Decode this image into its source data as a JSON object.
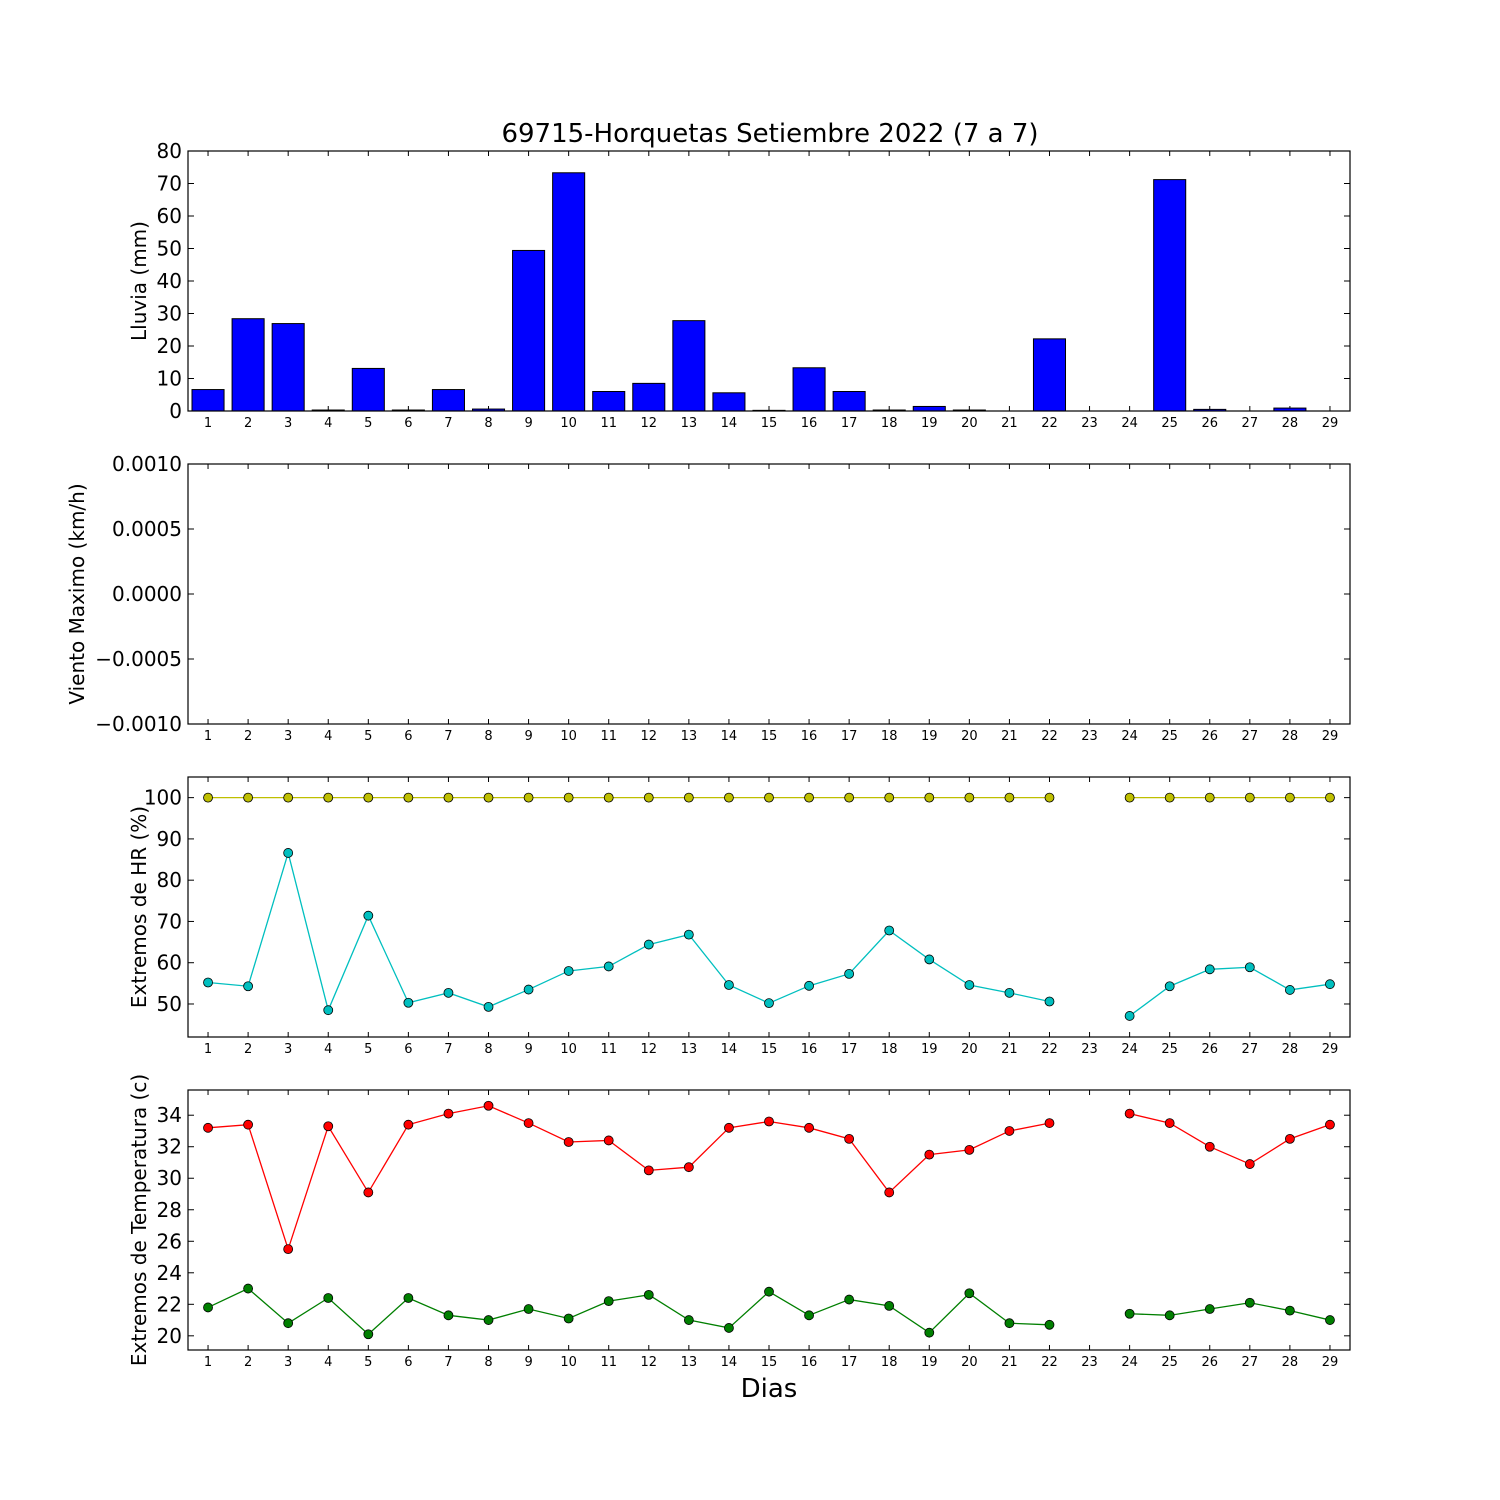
{
  "title": "69715-Horquetas Setiembre 2022  (7 a 7)",
  "xlabel": "Dias",
  "chart_data": [
    {
      "type": "bar",
      "ylabel": "Lluvia (mm)",
      "ylim": [
        0,
        80
      ],
      "yticks": [
        "0",
        "10",
        "20",
        "30",
        "40",
        "50",
        "60",
        "70",
        "80"
      ],
      "yticks_values": [
        0,
        10,
        20,
        30,
        40,
        50,
        60,
        70,
        80
      ],
      "categories": [
        "1",
        "2",
        "3",
        "4",
        "5",
        "6",
        "7",
        "8",
        "9",
        "10",
        "11",
        "12",
        "13",
        "14",
        "15",
        "16",
        "17",
        "18",
        "19",
        "20",
        "21",
        "22",
        "23",
        "24",
        "25",
        "26",
        "27",
        "28",
        "29"
      ],
      "x": [
        1,
        2,
        3,
        4,
        5,
        6,
        7,
        8,
        9,
        10,
        11,
        12,
        13,
        14,
        15,
        16,
        17,
        18,
        19,
        20,
        21,
        22,
        23,
        24,
        25,
        26,
        27,
        28,
        29
      ],
      "values": [
        6.6,
        28.4,
        26.9,
        0.3,
        13.1,
        0.3,
        6.6,
        0.6,
        49.4,
        73.3,
        6.0,
        8.5,
        27.8,
        5.6,
        0.2,
        13.3,
        6.0,
        0.3,
        1.4,
        0.3,
        0,
        22.2,
        0,
        0,
        71.2,
        0.5,
        0,
        0.9,
        0
      ],
      "color": "#0000ff"
    },
    {
      "type": "line",
      "ylabel": "Viento Maximo (km/h)",
      "ylim": [
        -0.001,
        0.001
      ],
      "yticks": [
        "−0.0010",
        "−0.0005",
        "0.0000",
        "0.0005",
        "0.0010"
      ],
      "yticks_values": [
        -0.001,
        -0.0005,
        0,
        0.0005,
        0.001
      ],
      "categories": [
        "1",
        "2",
        "3",
        "4",
        "5",
        "6",
        "7",
        "8",
        "9",
        "10",
        "11",
        "12",
        "13",
        "14",
        "15",
        "16",
        "17",
        "18",
        "19",
        "20",
        "21",
        "22",
        "23",
        "24",
        "25",
        "26",
        "27",
        "28",
        "29"
      ],
      "series": []
    },
    {
      "type": "line",
      "ylabel": "Extremos de HR (%)",
      "ylim": [
        42,
        105
      ],
      "yticks": [
        "50",
        "60",
        "70",
        "80",
        "90",
        "100"
      ],
      "yticks_values": [
        50,
        60,
        70,
        80,
        90,
        100
      ],
      "categories": [
        "1",
        "2",
        "3",
        "4",
        "5",
        "6",
        "7",
        "8",
        "9",
        "10",
        "11",
        "12",
        "13",
        "14",
        "15",
        "16",
        "17",
        "18",
        "19",
        "20",
        "21",
        "22",
        "23",
        "24",
        "25",
        "26",
        "27",
        "28",
        "29"
      ],
      "x": [
        1,
        2,
        3,
        4,
        5,
        6,
        7,
        8,
        9,
        10,
        11,
        12,
        13,
        14,
        15,
        16,
        17,
        18,
        19,
        20,
        21,
        22,
        23,
        24,
        25,
        26,
        27,
        28,
        29
      ],
      "series": [
        {
          "color": "#bfbf00",
          "values": [
            100,
            100,
            100,
            100,
            100,
            100,
            100,
            100,
            100,
            100,
            100,
            100,
            100,
            100,
            100,
            100,
            100,
            100,
            100,
            100,
            100,
            100,
            null,
            100,
            100,
            100,
            100,
            100,
            100
          ]
        },
        {
          "color": "#00bfbf",
          "values": [
            55.2,
            54.3,
            86.6,
            48.5,
            71.4,
            50.3,
            52.7,
            49.3,
            53.5,
            58.0,
            59.1,
            64.4,
            66.8,
            54.6,
            50.2,
            54.4,
            57.3,
            67.8,
            60.8,
            54.6,
            52.7,
            50.6,
            null,
            47.1,
            54.3,
            58.4,
            58.9,
            53.4,
            54.8
          ]
        }
      ]
    },
    {
      "type": "line",
      "ylabel": "Extremos de Temperatura (c)",
      "ylim": [
        19.1,
        35.6
      ],
      "yticks": [
        "20",
        "22",
        "24",
        "26",
        "28",
        "30",
        "32",
        "34"
      ],
      "yticks_values": [
        20,
        22,
        24,
        26,
        28,
        30,
        32,
        34
      ],
      "categories": [
        "1",
        "2",
        "3",
        "4",
        "5",
        "6",
        "7",
        "8",
        "9",
        "10",
        "11",
        "12",
        "13",
        "14",
        "15",
        "16",
        "17",
        "18",
        "19",
        "20",
        "21",
        "22",
        "23",
        "24",
        "25",
        "26",
        "27",
        "28",
        "29"
      ],
      "x": [
        1,
        2,
        3,
        4,
        5,
        6,
        7,
        8,
        9,
        10,
        11,
        12,
        13,
        14,
        15,
        16,
        17,
        18,
        19,
        20,
        21,
        22,
        23,
        24,
        25,
        26,
        27,
        28,
        29
      ],
      "series": [
        {
          "color": "#ff0000",
          "values": [
            33.2,
            33.4,
            25.5,
            33.3,
            29.1,
            33.4,
            34.1,
            34.6,
            33.5,
            32.3,
            32.4,
            30.5,
            30.7,
            33.2,
            33.6,
            33.2,
            32.5,
            29.1,
            31.5,
            31.8,
            33.0,
            33.5,
            null,
            34.1,
            33.5,
            32.0,
            30.9,
            32.5,
            33.4
          ]
        },
        {
          "color": "#007f00",
          "values": [
            21.8,
            23.0,
            20.8,
            22.4,
            20.1,
            22.4,
            21.3,
            21.0,
            21.7,
            21.1,
            22.2,
            22.6,
            21.0,
            20.5,
            22.8,
            21.3,
            22.3,
            21.9,
            20.2,
            22.7,
            20.8,
            20.7,
            null,
            21.4,
            21.3,
            21.7,
            22.1,
            21.6,
            21.0
          ]
        }
      ]
    }
  ]
}
